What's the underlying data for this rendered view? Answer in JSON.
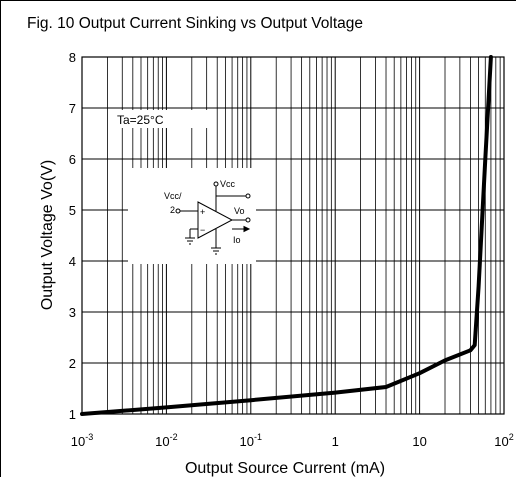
{
  "chart_data": {
    "type": "line",
    "title": "Fig. 10 Output Current Sinking vs Output Voltage",
    "xlabel": "Output Source Current (mA)",
    "ylabel": "Output Voltage  Vo(V)",
    "xscale": "log",
    "xlim": [
      0.001,
      100
    ],
    "ylim": [
      1,
      8
    ],
    "grid": true,
    "x_ticks": [
      {
        "base": "10",
        "exp": "-3",
        "value": 0.001
      },
      {
        "base": "10",
        "exp": "-2",
        "value": 0.01
      },
      {
        "base": "10",
        "exp": "-1",
        "value": 0.1
      },
      {
        "base": "1",
        "exp": "",
        "value": 1
      },
      {
        "base": "10",
        "exp": "",
        "value": 10
      },
      {
        "base": "10",
        "exp": "2",
        "value": 100
      }
    ],
    "y_ticks": [
      1,
      2,
      3,
      4,
      5,
      6,
      7,
      8
    ],
    "annotation": "Ta=25°C",
    "series": [
      {
        "x": [
          0.001,
          0.01,
          0.1,
          1,
          4,
          10,
          20,
          40,
          45,
          50,
          60,
          70
        ],
        "y": [
          1.0,
          1.13,
          1.27,
          1.42,
          1.53,
          1.8,
          2.05,
          2.25,
          2.35,
          3.5,
          6.0,
          8.0
        ]
      }
    ],
    "schematic_labels": {
      "vcc_top": "Vcc",
      "vcc_half_line1": "Vcc/",
      "vcc_half_line2": "2",
      "vo": "Vo",
      "io": "Io",
      "plus": "+",
      "minus": "−"
    }
  }
}
